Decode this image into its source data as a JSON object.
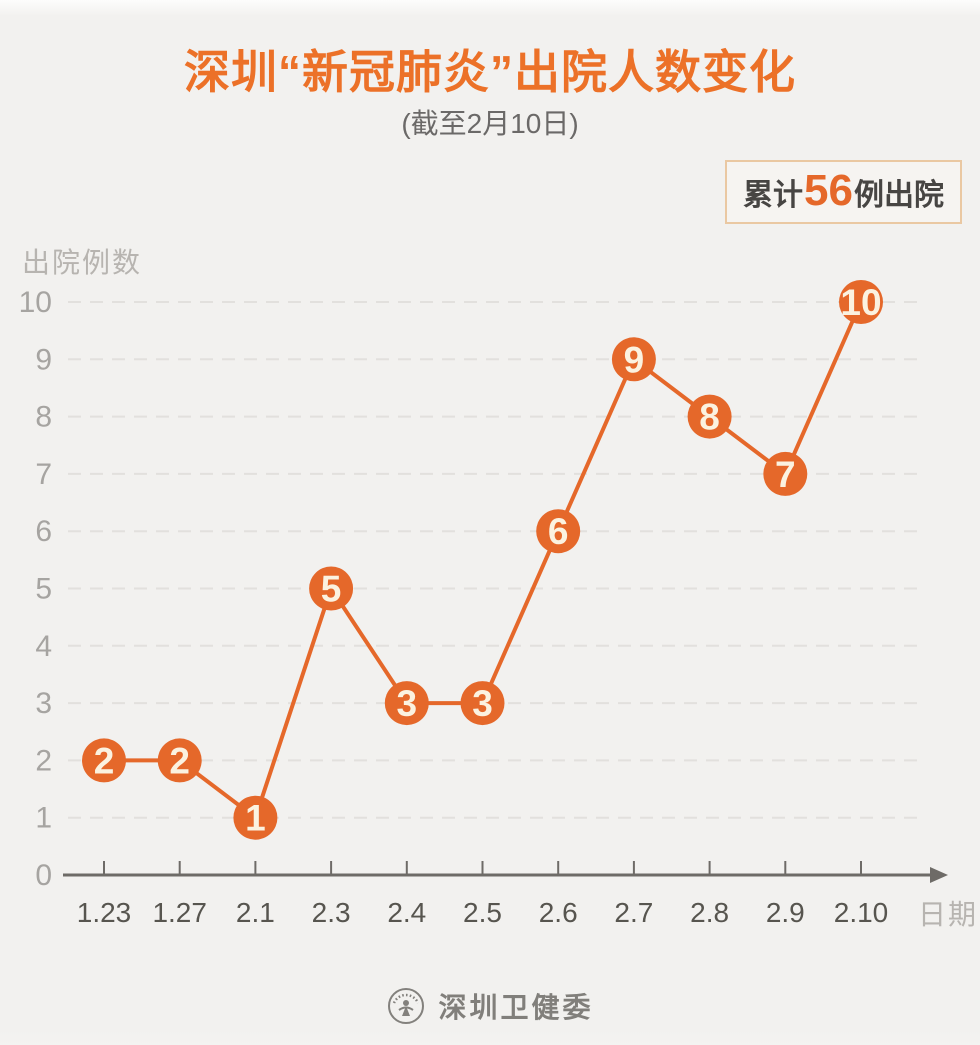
{
  "title": "深圳“新冠肺炎”出院人数变化",
  "subtitle": "(截至2月10日)",
  "badge": {
    "prefix": "累计",
    "count": "56",
    "suffix": "例出院"
  },
  "footer": {
    "org": "深圳卫健委",
    "emblem_icon": "health-commission-emblem"
  },
  "colors": {
    "background": "#f2f1ef",
    "title_orange": "#ec7128",
    "accent": "#e5682a",
    "marker_text": "#fbf2e0",
    "badge_border": "#eac8a2",
    "badge_text": "#474543",
    "subtitle_gray": "#6b6968",
    "grid": "#e2e0dd",
    "axis": "#6e6b67",
    "y_tick": "#a6a4a1",
    "x_tick": "#57554f",
    "axis_label": "#b7b4b0",
    "footer_gray": "#817f7b"
  },
  "chart_data": {
    "type": "line",
    "title": "深圳“新冠肺炎”出院人数变化",
    "subtitle": "(截至2月10日)",
    "x": [
      "1.23",
      "1.27",
      "2.1",
      "2.3",
      "2.4",
      "2.5",
      "2.6",
      "2.7",
      "2.8",
      "2.9",
      "2.10"
    ],
    "values": [
      2,
      2,
      1,
      5,
      3,
      3,
      6,
      9,
      8,
      7,
      10
    ],
    "total_annotation": "累计56例出院",
    "xlabel": "日期",
    "ylabel": "出院例数",
    "ylim": [
      0,
      10
    ],
    "yticks": [
      0,
      1,
      2,
      3,
      4,
      5,
      6,
      7,
      8,
      9,
      10
    ],
    "grid": "horizontal-dashed",
    "legend": "none",
    "markers": "filled-circle-with-value-label",
    "source": "深圳卫健委"
  }
}
